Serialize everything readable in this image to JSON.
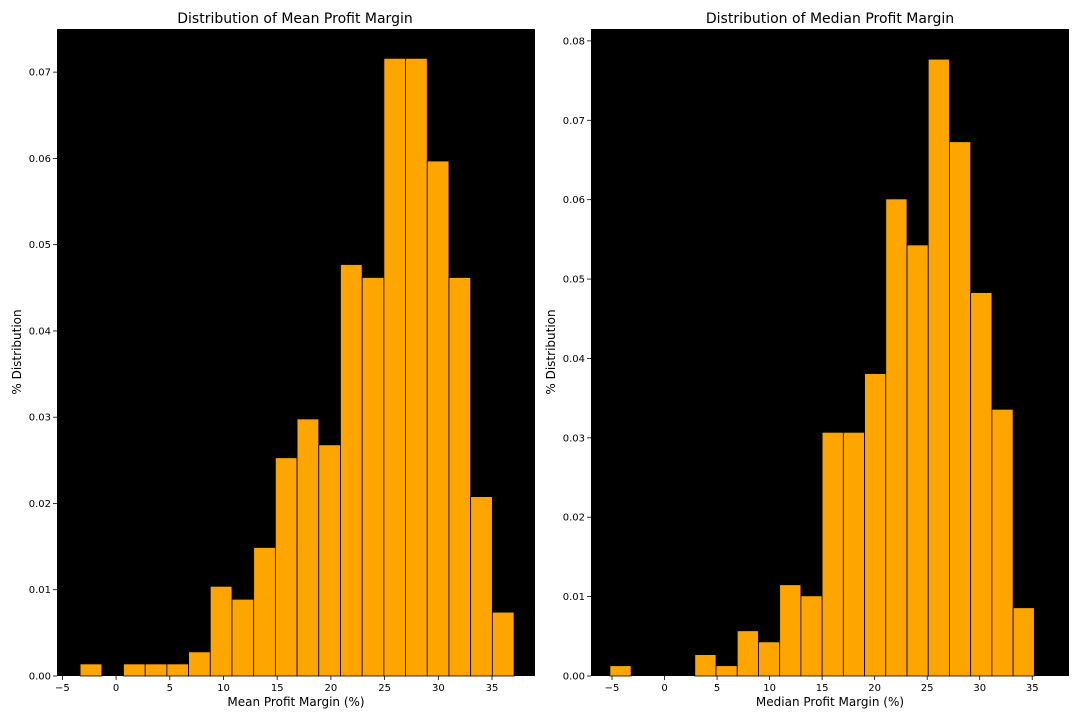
{
  "chart_data": [
    {
      "type": "bar",
      "title": "Distribution of Mean Profit Margin",
      "xlabel": "Mean Profit Margin (%)",
      "ylabel": "% Distribution",
      "xlim": [
        -5.5,
        39
      ],
      "ylim": [
        0,
        0.075
      ],
      "xticks": [
        -5,
        0,
        5,
        10,
        15,
        20,
        25,
        30,
        35
      ],
      "yticks": [
        0.0,
        0.01,
        0.02,
        0.03,
        0.04,
        0.05,
        0.06,
        0.07
      ],
      "bin_edges": [
        -3.35,
        -1.33,
        0.69,
        2.71,
        4.73,
        6.75,
        8.77,
        10.79,
        12.81,
        14.83,
        16.85,
        18.87,
        20.89,
        22.91,
        24.93,
        26.95,
        28.97,
        30.99,
        33.01,
        35.03,
        37.05
      ],
      "values": [
        0.0014,
        0.0,
        0.0014,
        0.0014,
        0.0014,
        0.0028,
        0.0104,
        0.0089,
        0.0149,
        0.0253,
        0.0298,
        0.0268,
        0.0477,
        0.0462,
        0.0716,
        0.0716,
        0.0597,
        0.0462,
        0.0208,
        0.0074
      ],
      "bar_color": "#ffa500",
      "edge_color": "#000000",
      "plot_background": "#000000"
    },
    {
      "type": "bar",
      "title": "Distribution of Median Profit Margin",
      "xlabel": "Median Profit Margin (%)",
      "ylabel": "% Distribution",
      "xlim": [
        -7,
        38.5
      ],
      "ylim": [
        0,
        0.0815
      ],
      "xticks": [
        -5,
        0,
        5,
        10,
        15,
        20,
        25,
        30,
        35
      ],
      "yticks": [
        0.0,
        0.01,
        0.02,
        0.03,
        0.04,
        0.05,
        0.06,
        0.07,
        0.08
      ],
      "bin_edges": [
        -5.2,
        -3.18,
        -1.16,
        0.86,
        2.88,
        4.9,
        6.92,
        8.94,
        10.96,
        12.98,
        15.0,
        17.02,
        19.04,
        21.06,
        23.08,
        25.1,
        27.12,
        29.14,
        31.16,
        33.18,
        35.2
      ],
      "values": [
        0.0013,
        0.0,
        0.0,
        0.0,
        0.0027,
        0.0013,
        0.0057,
        0.0043,
        0.0115,
        0.0101,
        0.0307,
        0.0307,
        0.0381,
        0.0601,
        0.0543,
        0.0777,
        0.0673,
        0.0483,
        0.0336,
        0.0086
      ],
      "bar_color": "#ffa500",
      "edge_color": "#000000",
      "plot_background": "#000000"
    }
  ]
}
